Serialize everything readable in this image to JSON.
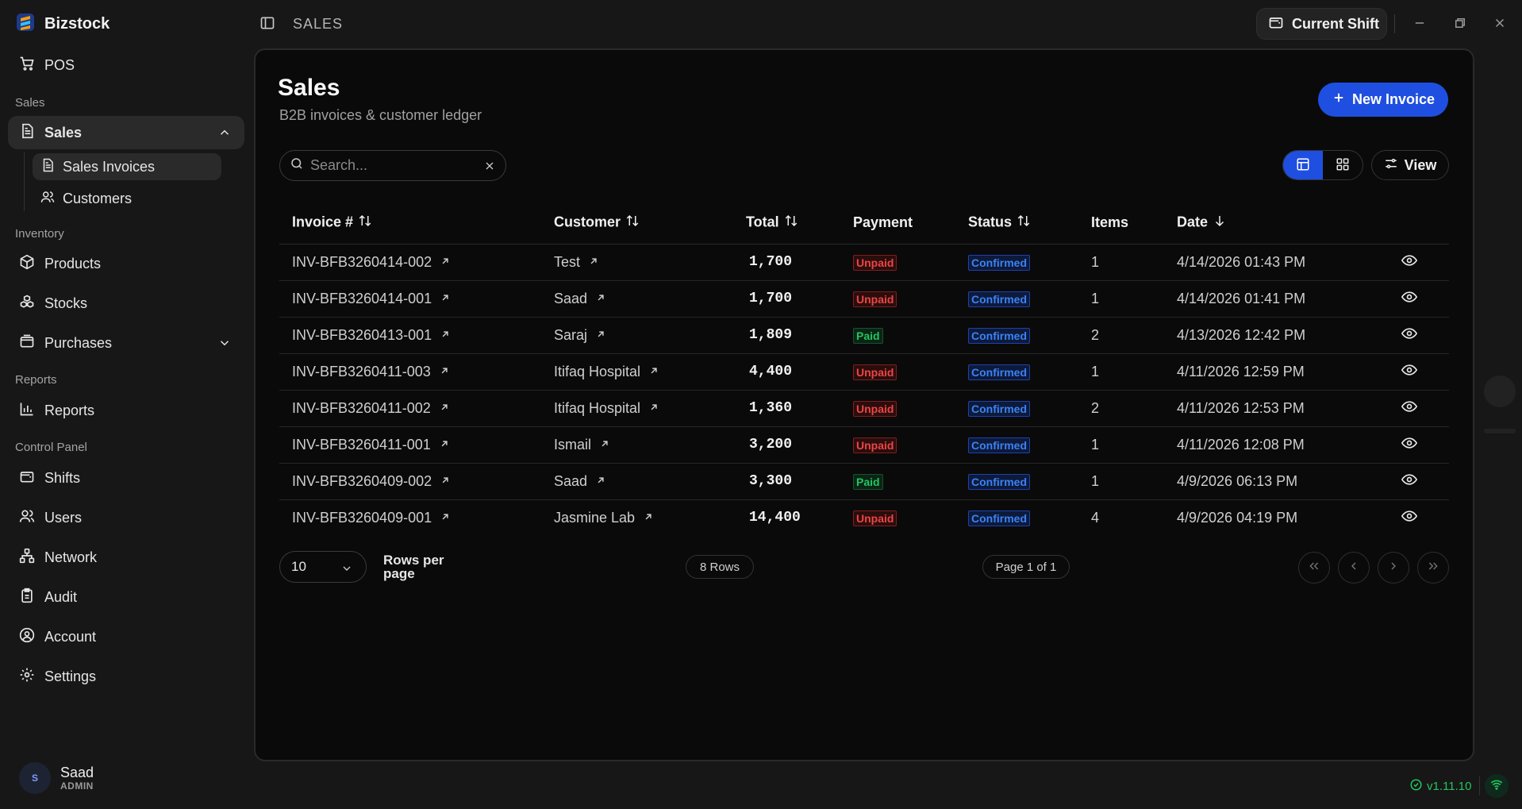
{
  "app": {
    "name": "Bizstock"
  },
  "sidebar": {
    "pos_label": "POS",
    "sections": {
      "sales": "Sales",
      "inventory": "Inventory",
      "reports": "Reports",
      "control": "Control Panel"
    },
    "sales_label": "Sales",
    "sales_invoices_label": "Sales Invoices",
    "customers_label": "Customers",
    "products_label": "Products",
    "stocks_label": "Stocks",
    "purchases_label": "Purchases",
    "reports_label": "Reports",
    "shifts_label": "Shifts",
    "users_label": "Users",
    "network_label": "Network",
    "audit_label": "Audit",
    "account_label": "Account",
    "settings_label": "Settings"
  },
  "user": {
    "initial": "S",
    "name": "Saad",
    "role": "ADMIN"
  },
  "topbar": {
    "title": "SALES",
    "shift_label": "Current Shift"
  },
  "page": {
    "title": "Sales",
    "subtitle": "B2B invoices & customer ledger",
    "new_button": "New Invoice"
  },
  "search": {
    "placeholder": "Search...",
    "value": ""
  },
  "view_label": "View",
  "table": {
    "headers": {
      "invoice": "Invoice #",
      "customer": "Customer",
      "total": "Total",
      "payment": "Payment",
      "status": "Status",
      "items": "Items",
      "date": "Date"
    },
    "rows": [
      {
        "invoice": "INV-BFB3260414-002",
        "customer": "Test",
        "total": "1,700",
        "payment": "Unpaid",
        "status": "Confirmed",
        "items": "1",
        "date": "4/14/2026 01:43 PM"
      },
      {
        "invoice": "INV-BFB3260414-001",
        "customer": "Saad",
        "total": "1,700",
        "payment": "Unpaid",
        "status": "Confirmed",
        "items": "1",
        "date": "4/14/2026 01:41 PM"
      },
      {
        "invoice": "INV-BFB3260413-001",
        "customer": "Saraj",
        "total": "1,809",
        "payment": "Paid",
        "status": "Confirmed",
        "items": "2",
        "date": "4/13/2026 12:42 PM"
      },
      {
        "invoice": "INV-BFB3260411-003",
        "customer": "Itifaq Hospital",
        "total": "4,400",
        "payment": "Unpaid",
        "status": "Confirmed",
        "items": "1",
        "date": "4/11/2026 12:59 PM"
      },
      {
        "invoice": "INV-BFB3260411-002",
        "customer": "Itifaq Hospital",
        "total": "1,360",
        "payment": "Unpaid",
        "status": "Confirmed",
        "items": "2",
        "date": "4/11/2026 12:53 PM"
      },
      {
        "invoice": "INV-BFB3260411-001",
        "customer": "Ismail",
        "total": "3,200",
        "payment": "Unpaid",
        "status": "Confirmed",
        "items": "1",
        "date": "4/11/2026 12:08 PM"
      },
      {
        "invoice": "INV-BFB3260409-002",
        "customer": "Saad",
        "total": "3,300",
        "payment": "Paid",
        "status": "Confirmed",
        "items": "1",
        "date": "4/9/2026 06:13 PM"
      },
      {
        "invoice": "INV-BFB3260409-001",
        "customer": "Jasmine Lab",
        "total": "14,400",
        "payment": "Unpaid",
        "status": "Confirmed",
        "items": "4",
        "date": "4/9/2026 04:19 PM"
      }
    ]
  },
  "pagination": {
    "rows_per_page": "10",
    "rows_per_page_label": "Rows per page",
    "rows_count": "8 Rows",
    "page_info": "Page 1 of 1"
  },
  "status_bar": {
    "version": "v1.11.10"
  },
  "colors": {
    "accent": "#1f4fe0",
    "unpaid": "#ef4444",
    "paid": "#22c55e",
    "confirmed": "#3b82f6",
    "background": "#0a0a0a"
  }
}
